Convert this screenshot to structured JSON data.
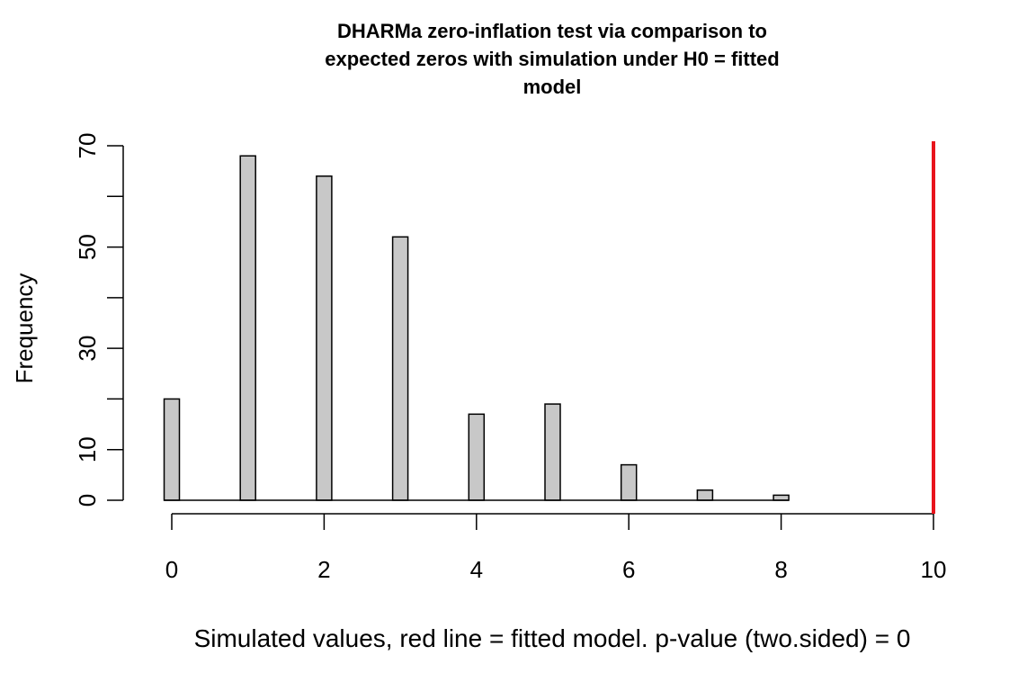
{
  "chart_data": {
    "type": "bar",
    "title_lines": [
      "DHARMa zero-inflation test via comparison to",
      "expected zeros with simulation under H0 = fitted",
      "model"
    ],
    "xlabel": "Simulated values, red line = fitted model. p-value (two.sided) = 0",
    "ylabel": "Frequency",
    "x_ticks": [
      "0",
      "2",
      "4",
      "6",
      "8",
      "10"
    ],
    "y_ticks": [
      "0",
      "10",
      "30",
      "50",
      "70"
    ],
    "xlim": [
      0,
      10
    ],
    "ylim": [
      0,
      70
    ],
    "bins": [
      {
        "x": 0,
        "value": 20
      },
      {
        "x": 1,
        "value": 68
      },
      {
        "x": 2,
        "value": 64
      },
      {
        "x": 3,
        "value": 52
      },
      {
        "x": 4,
        "value": 17
      },
      {
        "x": 5,
        "value": 19
      },
      {
        "x": 6,
        "value": 7
      },
      {
        "x": 7,
        "value": 2
      },
      {
        "x": 8,
        "value": 1
      }
    ],
    "reference_line": {
      "x": 10,
      "color": "#e8141c"
    },
    "bar_color": "#c8c8c8",
    "grid": false
  }
}
